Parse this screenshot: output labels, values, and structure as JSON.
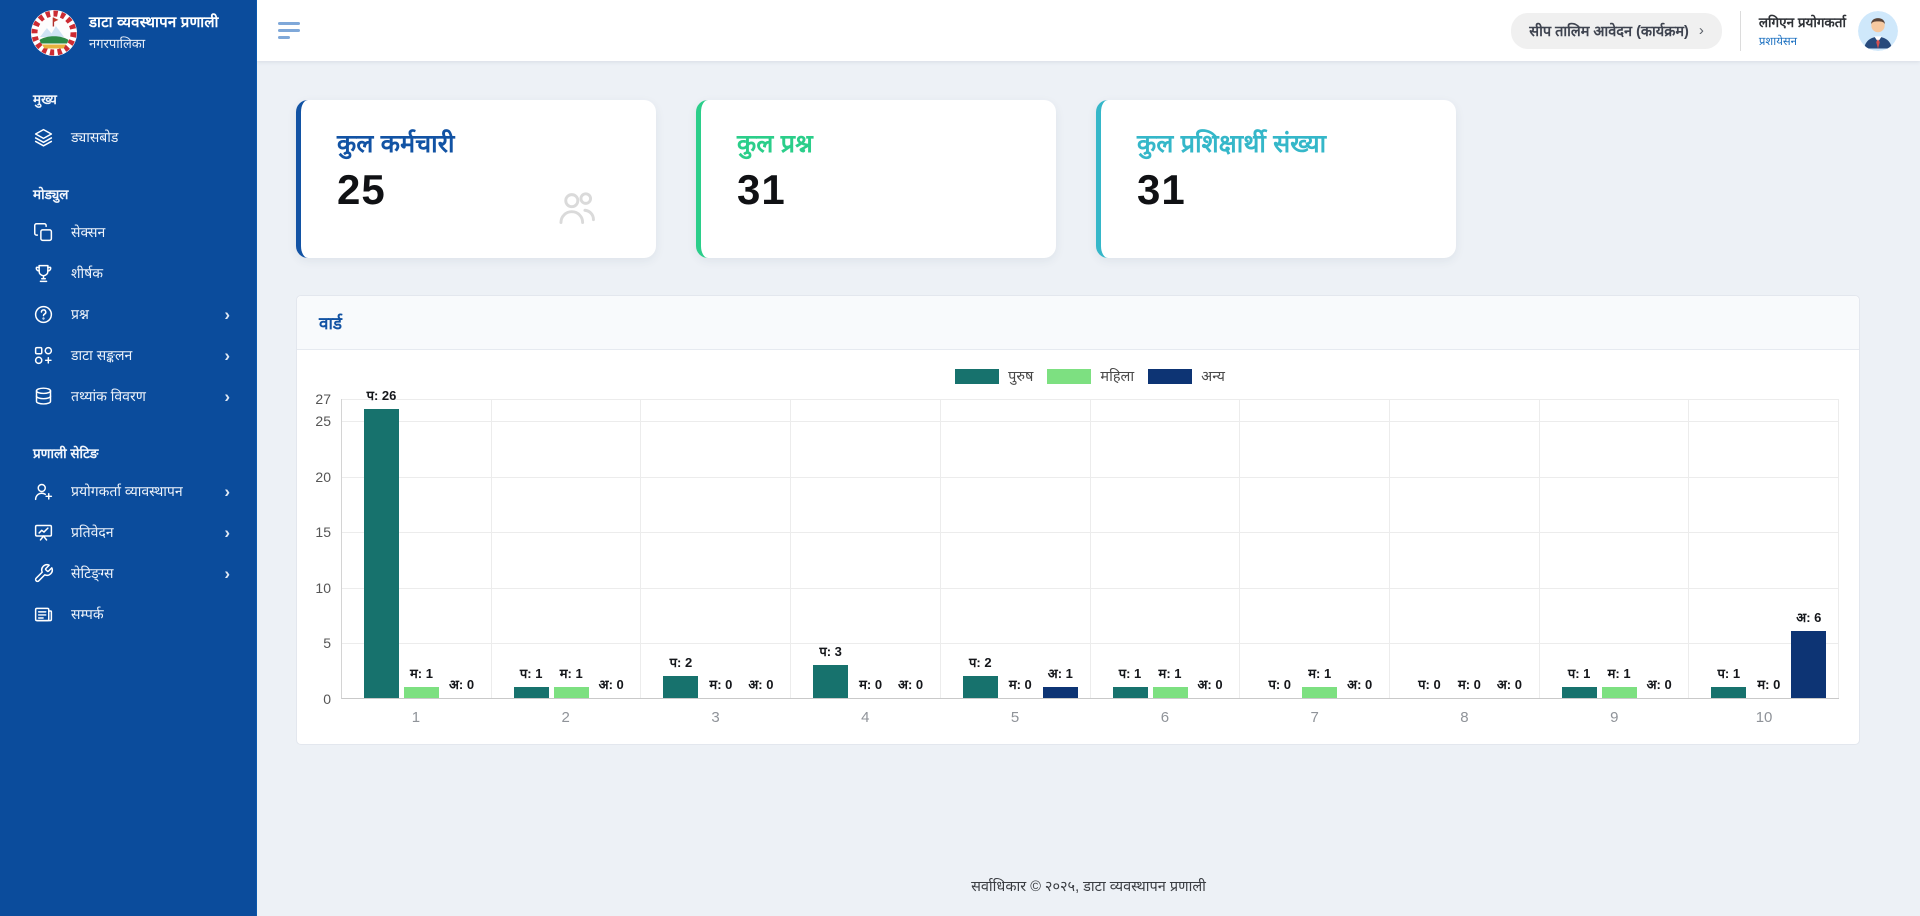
{
  "app": {
    "title": "डाटा व्यवस्थापन प्रणाली",
    "subtitle": "नगरपालिका"
  },
  "icons": {
    "chevron_right": "›"
  },
  "sidebar": {
    "groups": [
      {
        "label": "मुख्य",
        "items": [
          {
            "label": "ड्यासबोड",
            "icon": "layers-icon",
            "chevron": false
          }
        ]
      },
      {
        "label": "मोड्युल",
        "items": [
          {
            "label": "सेक्सन",
            "icon": "copy-icon",
            "chevron": false
          },
          {
            "label": "शीर्षक",
            "icon": "trophy-icon",
            "chevron": false
          },
          {
            "label": "प्रश्न",
            "icon": "question-circle-icon",
            "chevron": true
          },
          {
            "label": "डाटा सङ्कलन",
            "icon": "collection-icon",
            "chevron": true
          },
          {
            "label": "तथ्यांक विवरण",
            "icon": "database-icon",
            "chevron": true
          }
        ]
      },
      {
        "label": "प्रणाली सेटिङ",
        "items": [
          {
            "label": "प्रयोगकर्ता व्यावस्थापन",
            "icon": "user-plus-icon",
            "chevron": true
          },
          {
            "label": "प्रतिवेदन",
            "icon": "report-icon",
            "chevron": true
          },
          {
            "label": "सेटिङ्ग्स",
            "icon": "wrench-icon",
            "chevron": true
          },
          {
            "label": "सम्पर्क",
            "icon": "contact-icon",
            "chevron": false
          }
        ]
      }
    ]
  },
  "header": {
    "program_button": "सीप तालिम आवेदन (कार्यक्रम)",
    "user": {
      "name": "लगिएन प्रयोगकर्ता",
      "role": "प्रशायेसन"
    }
  },
  "cards": [
    {
      "title": "कुल कर्मचारी",
      "value": "25",
      "accent": "#1253a4"
    },
    {
      "title": "कुल प्रश्न",
      "value": "31",
      "accent": "#2bce8a"
    },
    {
      "title": "कुल प्रशिक्षार्थी संख्या",
      "value": "31",
      "accent": "#35b7c9"
    }
  ],
  "chart_card": {
    "title": "वार्ड"
  },
  "chart_data": {
    "type": "bar",
    "title": "वार्ड",
    "categories": [
      "1",
      "2",
      "3",
      "4",
      "5",
      "6",
      "7",
      "8",
      "9",
      "10"
    ],
    "series": [
      {
        "name": "पुरुष",
        "key": "purush",
        "label_prefix": "प",
        "color": "#17726d",
        "values": [
          26,
          1,
          2,
          3,
          2,
          1,
          0,
          0,
          1,
          1
        ]
      },
      {
        "name": "महिला",
        "key": "mahila",
        "label_prefix": "म",
        "color": "#7de081",
        "values": [
          1,
          1,
          0,
          0,
          0,
          1,
          1,
          0,
          1,
          0
        ]
      },
      {
        "name": "अन्य",
        "key": "anya",
        "label_prefix": "अ",
        "color": "#0d3474",
        "values": [
          0,
          0,
          0,
          0,
          1,
          0,
          0,
          0,
          0,
          6
        ]
      }
    ],
    "xlabel": "",
    "ylabel": "",
    "ylim": [
      0,
      27
    ],
    "yticks": [
      0,
      5,
      10,
      15,
      20,
      25,
      27
    ],
    "legend_position": "top",
    "grid": true
  },
  "footer": {
    "text": "सर्वाधिकार © २०२५, डाटा व्यवस्थापन प्रणाली"
  },
  "theme": {
    "sidebar": "#0b4c9c",
    "role_link": "#1a6fc0"
  }
}
